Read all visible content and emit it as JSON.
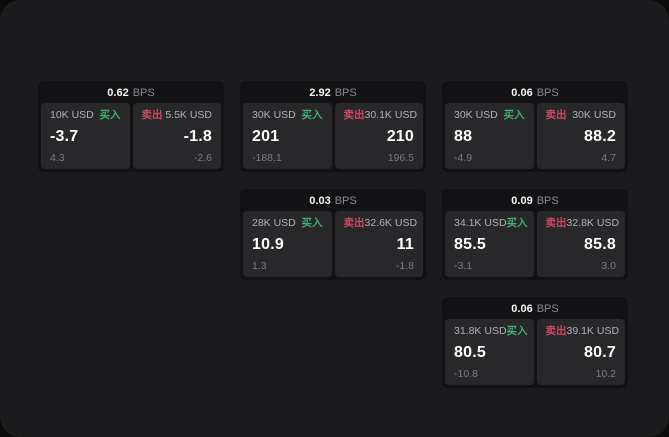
{
  "labels": {
    "bps_unit": "BPS",
    "buy": "买入",
    "sell": "卖出"
  },
  "colors": {
    "panel_bg": "#1b1b1d",
    "card_bg": "#121214",
    "tile_bg": "#28282b",
    "buy_green": "#3fae6e",
    "sell_red": "#cf4a5f"
  },
  "cards": [
    {
      "bps": "0.62",
      "buy": {
        "size": "10K USD",
        "value": "-3.7",
        "delta": "4.3"
      },
      "sell": {
        "size": "5.5K USD",
        "value": "-1.8",
        "delta": "-2.6"
      }
    },
    {
      "bps": "2.92",
      "buy": {
        "size": "30K USD",
        "value": "201",
        "delta": "-188.1"
      },
      "sell": {
        "size": "30.1K USD",
        "value": "210",
        "delta": "196.5"
      }
    },
    {
      "bps": "0.06",
      "buy": {
        "size": "30K USD",
        "value": "88",
        "delta": "-4.9"
      },
      "sell": {
        "size": "30K USD",
        "value": "88.2",
        "delta": "4.7"
      }
    },
    {
      "bps": "0.03",
      "buy": {
        "size": "28K USD",
        "value": "10.9",
        "delta": "1.3"
      },
      "sell": {
        "size": "32.6K USD",
        "value": "11",
        "delta": "-1.8"
      }
    },
    {
      "bps": "0.09",
      "buy": {
        "size": "34.1K USD",
        "value": "85.5",
        "delta": "-3.1"
      },
      "sell": {
        "size": "32.8K USD",
        "value": "85.8",
        "delta": "3.0"
      }
    },
    {
      "bps": "0.06",
      "buy": {
        "size": "31.8K USD",
        "value": "80.5",
        "delta": "-10.8"
      },
      "sell": {
        "size": "39.1K USD",
        "value": "80.7",
        "delta": "10.2"
      }
    }
  ]
}
